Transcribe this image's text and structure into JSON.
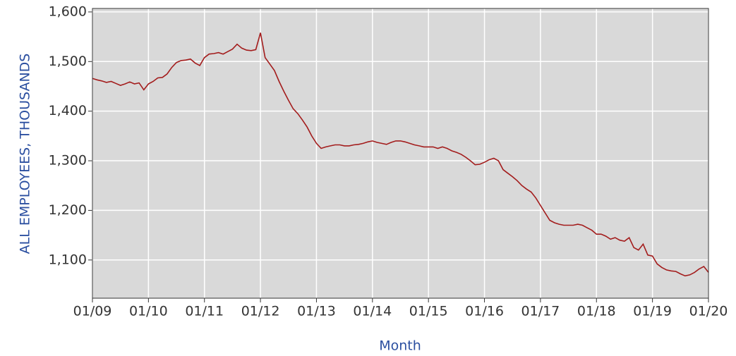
{
  "chart_data": {
    "type": "line",
    "x_label": "Month",
    "y_label": "ALL EMPLOYEES, THOUSANDS",
    "categories": [
      "01/09",
      null,
      null,
      null,
      null,
      null,
      null,
      null,
      null,
      null,
      null,
      null,
      "01/10",
      null,
      null,
      null,
      null,
      null,
      null,
      null,
      null,
      null,
      null,
      null,
      "01/11",
      null,
      null,
      null,
      null,
      null,
      null,
      null,
      null,
      null,
      null,
      null,
      "01/12",
      null,
      null,
      null,
      null,
      null,
      null,
      null,
      null,
      null,
      null,
      null,
      "01/13",
      null,
      null,
      null,
      null,
      null,
      null,
      null,
      null,
      null,
      null,
      null,
      "01/14",
      null,
      null,
      null,
      null,
      null,
      null,
      null,
      null,
      null,
      null,
      null,
      "01/15",
      null,
      null,
      null,
      null,
      null,
      null,
      null,
      null,
      null,
      null,
      null,
      "01/16",
      null,
      null,
      null,
      null,
      null,
      null,
      null,
      null,
      null,
      null,
      null,
      "01/17",
      null,
      null,
      null,
      null,
      null,
      null,
      null,
      null,
      null,
      null,
      null,
      "01/18",
      null,
      null,
      null,
      null,
      null,
      null,
      null,
      null,
      null,
      null,
      null,
      "01/19",
      null,
      null,
      null,
      null,
      null,
      null,
      null,
      null,
      null,
      null,
      null,
      "01/20"
    ],
    "values": [
      1466,
      1463,
      1461,
      1458,
      1460,
      1456,
      1452,
      1455,
      1459,
      1455,
      1457,
      1443,
      1455,
      1460,
      1467,
      1468,
      1475,
      1488,
      1498,
      1502,
      1503,
      1505,
      1497,
      1492,
      1508,
      1515,
      1516,
      1518,
      1515,
      1520,
      1525,
      1535,
      1527,
      1523,
      1522,
      1524,
      1558,
      1508,
      1495,
      1482,
      1460,
      1440,
      1422,
      1405,
      1395,
      1382,
      1368,
      1350,
      1335,
      1325,
      1328,
      1330,
      1332,
      1332,
      1330,
      1330,
      1332,
      1333,
      1335,
      1338,
      1340,
      1337,
      1335,
      1333,
      1337,
      1340,
      1340,
      1338,
      1335,
      1332,
      1330,
      1328,
      1328,
      1328,
      1325,
      1328,
      1325,
      1320,
      1317,
      1313,
      1307,
      1300,
      1292,
      1293,
      1297,
      1302,
      1305,
      1300,
      1282,
      1275,
      1268,
      1260,
      1250,
      1243,
      1237,
      1225,
      1210,
      1195,
      1180,
      1175,
      1172,
      1170,
      1170,
      1170,
      1172,
      1170,
      1165,
      1160,
      1152,
      1152,
      1148,
      1142,
      1145,
      1140,
      1138,
      1145,
      1125,
      1120,
      1132,
      1110,
      1108,
      1092,
      1085,
      1080,
      1078,
      1077,
      1072,
      1068,
      1070,
      1075,
      1082,
      1087,
      1075
    ],
    "color": "#a31c1c",
    "ylim": [
      1023,
      1607
    ],
    "yticks": [
      {
        "value": 1100,
        "label": "1,100"
      },
      {
        "value": 1200,
        "label": "1,200"
      },
      {
        "value": 1300,
        "label": "1,300"
      },
      {
        "value": 1400,
        "label": "1,400"
      },
      {
        "value": 1500,
        "label": "1,500"
      },
      {
        "value": 1600,
        "label": "1,600"
      }
    ],
    "grid": true
  }
}
